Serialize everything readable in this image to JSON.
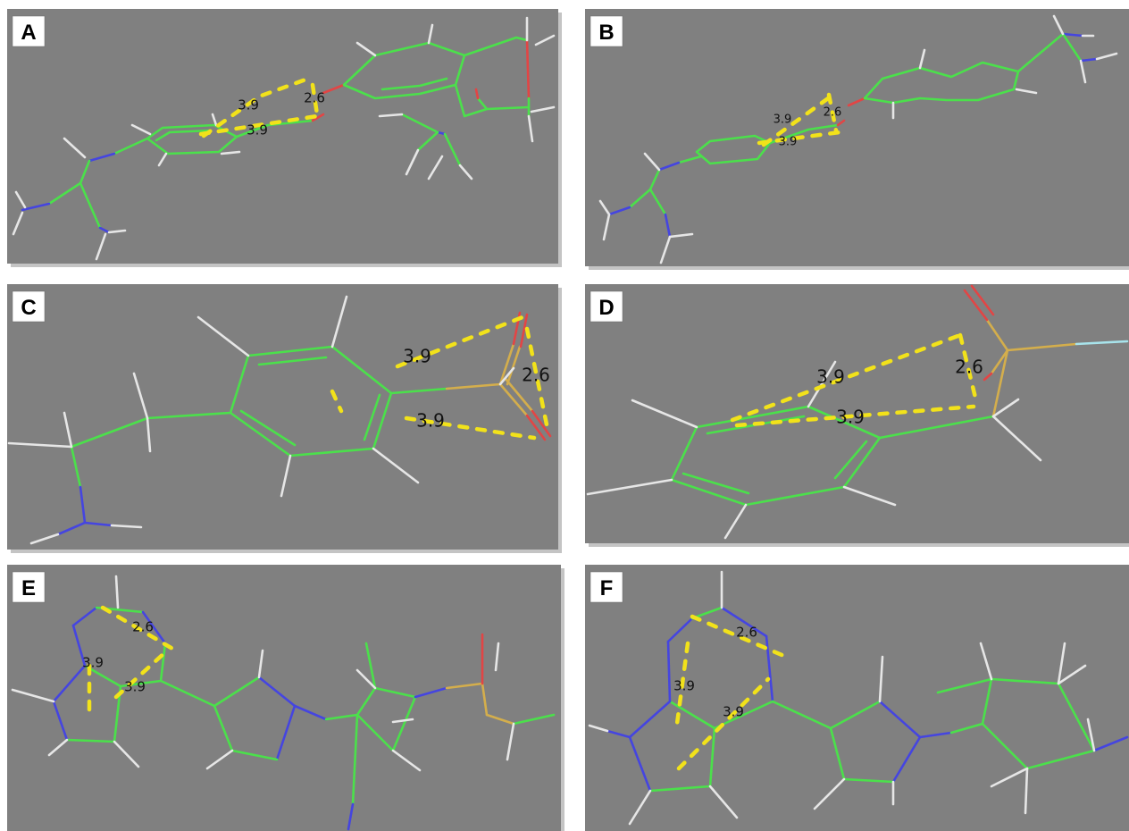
{
  "panels": [
    {
      "label": "A",
      "distances": [
        3.9,
        2.6,
        3.9
      ]
    },
    {
      "label": "B",
      "distances": [
        3.9,
        2.6,
        3.9
      ]
    },
    {
      "label": "C",
      "distances": [
        3.9,
        2.6,
        3.9
      ]
    },
    {
      "label": "D",
      "distances": [
        3.9,
        2.6,
        3.9
      ]
    },
    {
      "label": "E",
      "distances": [
        2.6,
        3.9,
        3.9
      ]
    },
    {
      "label": "F",
      "distances": [
        2.6,
        3.9,
        3.9
      ]
    }
  ]
}
